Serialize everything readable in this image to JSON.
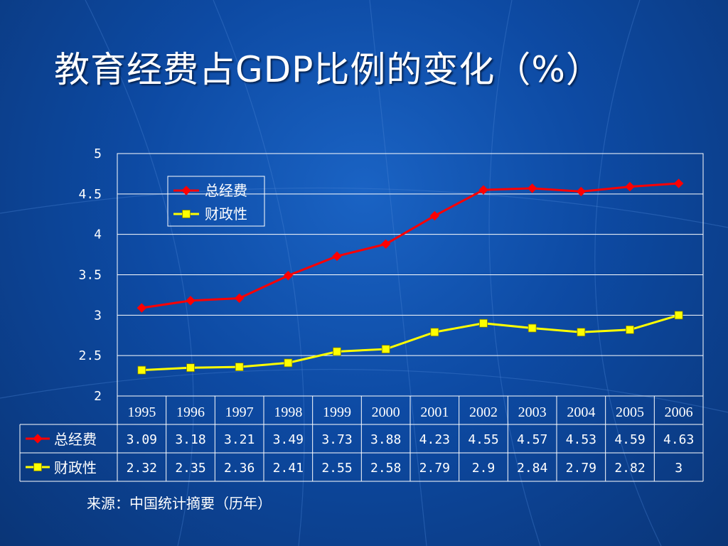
{
  "slide": {
    "title": "教育经费占GDP比例的变化（%）",
    "source": "来源：中国统计摘要（历年）",
    "background_color": "#0d4aa3"
  },
  "chart_data": {
    "type": "line",
    "title": "",
    "xlabel": "",
    "ylabel": "",
    "categories": [
      "1995",
      "1996",
      "1997",
      "1998",
      "1999",
      "2000",
      "2001",
      "2002",
      "2003",
      "2004",
      "2005",
      "2006"
    ],
    "ylim": [
      2,
      5
    ],
    "yticks": [
      "2",
      "2.5",
      "3",
      "3.5",
      "4",
      "4.5",
      "5"
    ],
    "grid": true,
    "legend_position": "top-left",
    "series": [
      {
        "name": "总经费",
        "color": "#ff0000",
        "marker": "diamond",
        "values": [
          3.09,
          3.18,
          3.21,
          3.49,
          3.73,
          3.88,
          4.23,
          4.55,
          4.57,
          4.53,
          4.59,
          4.63
        ],
        "labels": [
          "3.09",
          "3.18",
          "3.21",
          "3.49",
          "3.73",
          "3.88",
          "4.23",
          "4.55",
          "4.57",
          "4.53",
          "4.59",
          "4.63"
        ]
      },
      {
        "name": "财政性",
        "color": "#ffff00",
        "marker": "square",
        "values": [
          2.32,
          2.35,
          2.36,
          2.41,
          2.55,
          2.58,
          2.79,
          2.9,
          2.84,
          2.79,
          2.82,
          3
        ],
        "labels": [
          "2.32",
          "2.35",
          "2.36",
          "2.41",
          "2.55",
          "2.58",
          "2.79",
          "2.9",
          "2.84",
          "2.79",
          "2.82",
          "3"
        ]
      }
    ],
    "data_table": true
  }
}
